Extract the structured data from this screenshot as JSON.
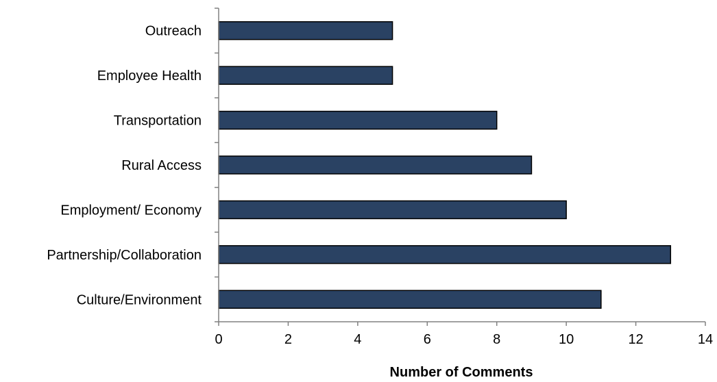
{
  "chart_data": {
    "type": "bar",
    "orientation": "horizontal",
    "categories": [
      "Outreach",
      "Employee Health",
      "Transportation",
      "Rural Access",
      "Employment/ Economy",
      "Partnership/Collaboration",
      "Culture/Environment"
    ],
    "values": [
      5,
      5,
      8,
      9,
      10,
      13,
      11
    ],
    "xlabel": "Number of Comments",
    "ylabel": "",
    "xlim": [
      0,
      14
    ],
    "xticks": [
      "0",
      "2",
      "4",
      "6",
      "8",
      "10",
      "12",
      "14"
    ],
    "grid": false,
    "legend": "none",
    "colors": {
      "bar_fill": "#2a4263",
      "bar_stroke": "#000000",
      "axis": "#808080"
    }
  }
}
